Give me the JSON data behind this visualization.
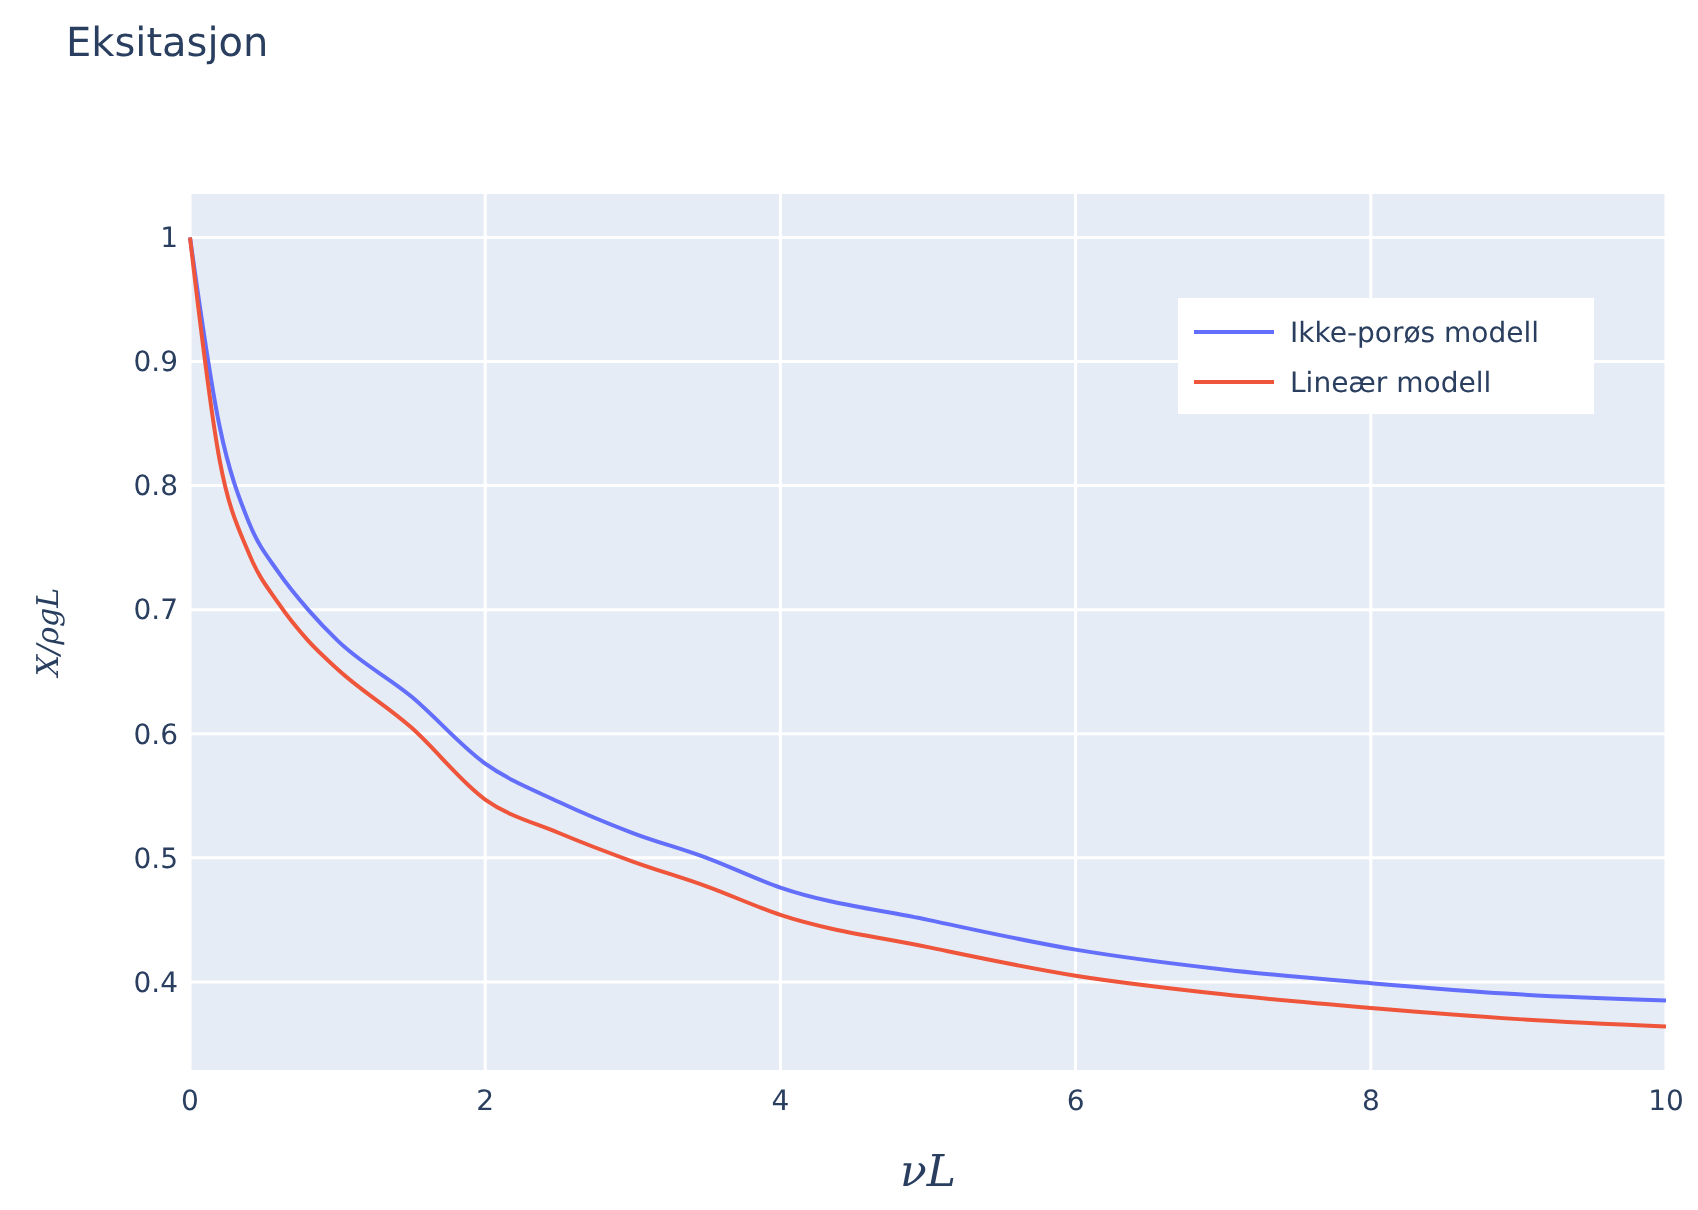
{
  "chart_data": {
    "type": "line",
    "title": "Eksitasjon",
    "xlabel": "νL",
    "ylabel": "X/ρgL",
    "x": [
      0,
      0.2,
      0.4,
      0.6,
      0.8,
      1,
      1.5,
      2,
      2.5,
      3,
      3.5,
      4,
      5,
      6,
      7,
      8,
      9,
      10
    ],
    "series": [
      {
        "name": "Ikke-porøs modell",
        "color": "#636efa",
        "values": [
          1,
          0.848,
          0.77,
          0.73,
          0.7,
          0.675,
          0.63,
          0.576,
          0.545,
          0.52,
          0.5,
          0.476,
          0.45,
          0.426,
          0.41,
          0.399,
          0.39,
          0.385
        ]
      },
      {
        "name": "Lineær modell",
        "color": "#ef553b",
        "values": [
          1,
          0.821,
          0.745,
          0.705,
          0.675,
          0.652,
          0.605,
          0.547,
          0.52,
          0.497,
          0.477,
          0.454,
          0.428,
          0.405,
          0.39,
          0.379,
          0.37,
          0.364
        ]
      }
    ],
    "xlim": [
      0,
      10
    ],
    "xticks": [
      0,
      2,
      4,
      6,
      8,
      10
    ],
    "ylim": [
      0.329,
      1.035
    ],
    "yticks": [
      0.4,
      0.5,
      0.6,
      0.7,
      0.8,
      0.9,
      1
    ],
    "grid": true,
    "legend": "top right",
    "line_style": "solid",
    "marker": "none"
  }
}
